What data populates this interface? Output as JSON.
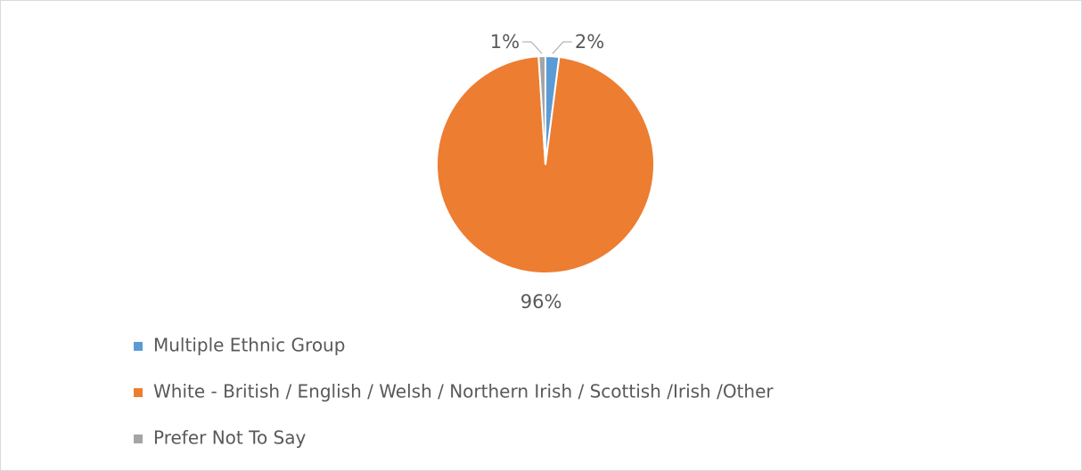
{
  "chart_data": {
    "type": "pie",
    "categories": [
      "Multiple Ethnic Group",
      "White - British / English / Welsh / Northern Irish / Scottish /Irish /Other",
      "Prefer Not To Say"
    ],
    "values": [
      2,
      96,
      1
    ],
    "value_labels": [
      "2%",
      "96%",
      "1%"
    ],
    "colors": [
      "#5b9bd5",
      "#ed7d31",
      "#a5a5a5"
    ],
    "legend": "bottom-left"
  }
}
